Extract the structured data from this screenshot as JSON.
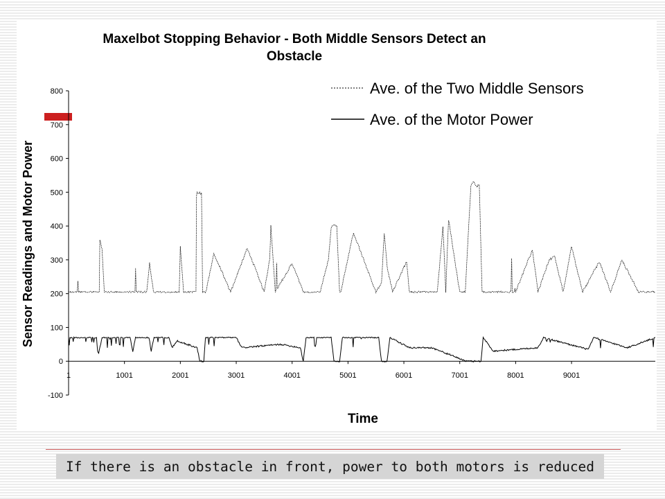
{
  "caption": "If there is an obstacle in front, power to both motors is reduced",
  "colors": {
    "accent": "#cc1f1f",
    "rule": "#cc5b5b",
    "caption_bg": "#d5d5d5",
    "series": "#000000"
  },
  "chart_data": {
    "type": "line",
    "title": "Maxelbot Stopping Behavior - Both Middle Sensors Detect an Obstacle",
    "title_lines": [
      "Maxelbot Stopping Behavior - Both Middle Sensors Detect an",
      "Obstacle"
    ],
    "xlabel": "Time",
    "ylabel": "Sensor Readings and Motor Power",
    "xlim": [
      1,
      10500
    ],
    "ylim": [
      -100,
      800
    ],
    "yticks": [
      -100,
      0,
      100,
      200,
      300,
      400,
      500,
      600,
      700,
      800
    ],
    "xticks": [
      1,
      1001,
      2001,
      3001,
      4001,
      5001,
      6001,
      7001,
      8001,
      9001
    ],
    "grid": false,
    "legend_position": "top-right",
    "series": [
      {
        "name": "Ave. of the Two Middle Sensors",
        "style": "dotted",
        "baseline": 205,
        "x": [
          1,
          550,
          560,
          600,
          640,
          1200,
          1400,
          1450,
          1520,
          1980,
          2000,
          2060,
          2240,
          2280,
          2290,
          2300,
          2380,
          2400,
          2460,
          2600,
          2900,
          3200,
          3500,
          3600,
          3620,
          3700,
          4000,
          4200,
          4500,
          4650,
          4700,
          4750,
          4800,
          4850,
          4870,
          5100,
          5500,
          5600,
          5650,
          5700,
          5800,
          6050,
          6100,
          6400,
          6500,
          6600,
          6700,
          6750,
          6800,
          7000,
          7100,
          7200,
          7250,
          7300,
          7350,
          7400,
          7500,
          7750,
          8000,
          8300,
          8400,
          8600,
          8700,
          8850,
          9000,
          9200,
          9500,
          9700,
          9900,
          10200,
          10500
        ],
        "y": [
          205,
          205,
          360,
          330,
          205,
          205,
          205,
          290,
          205,
          205,
          340,
          205,
          205,
          205,
          490,
          500,
          495,
          205,
          205,
          320,
          205,
          335,
          205,
          300,
          400,
          205,
          290,
          205,
          205,
          300,
          395,
          405,
          400,
          205,
          205,
          380,
          205,
          230,
          380,
          280,
          205,
          295,
          205,
          205,
          205,
          205,
          400,
          205,
          420,
          205,
          205,
          520,
          530,
          515,
          525,
          205,
          205,
          205,
          205,
          330,
          205,
          300,
          310,
          205,
          340,
          205,
          295,
          205,
          300,
          205,
          205
        ]
      },
      {
        "name": "Ave. of the Motor Power",
        "style": "solid",
        "baseline": 70,
        "x": [
          1,
          500,
          520,
          540,
          600,
          1100,
          1150,
          1200,
          1440,
          1480,
          1530,
          1800,
          1850,
          1950,
          2300,
          2350,
          2420,
          2450,
          3000,
          3100,
          3800,
          4150,
          4200,
          4250,
          4700,
          4750,
          4850,
          4900,
          5550,
          5600,
          5700,
          5750,
          6100,
          6500,
          7120,
          7150,
          7380,
          7420,
          7600,
          8400,
          8500,
          9300,
          9400,
          10000,
          10500
        ],
        "y": [
          70,
          70,
          30,
          25,
          70,
          70,
          30,
          70,
          70,
          30,
          70,
          70,
          40,
          60,
          40,
          0,
          0,
          70,
          70,
          40,
          50,
          40,
          0,
          70,
          70,
          0,
          0,
          70,
          70,
          0,
          0,
          70,
          40,
          40,
          0,
          0,
          0,
          70,
          30,
          40,
          70,
          35,
          70,
          40,
          70
        ]
      }
    ]
  }
}
